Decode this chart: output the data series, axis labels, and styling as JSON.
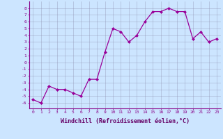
{
  "x": [
    0,
    1,
    2,
    3,
    4,
    5,
    6,
    7,
    8,
    9,
    10,
    11,
    12,
    13,
    14,
    15,
    16,
    17,
    18,
    19,
    20,
    21,
    22,
    23
  ],
  "y": [
    -5.5,
    -6.0,
    -3.5,
    -4.0,
    -4.0,
    -4.5,
    -5.0,
    -2.5,
    -2.5,
    1.5,
    5.0,
    4.5,
    3.0,
    4.0,
    6.0,
    7.5,
    7.5,
    8.0,
    7.5,
    7.5,
    3.5,
    4.5,
    3.0,
    3.5
  ],
  "line_color": "#990099",
  "marker": "D",
  "markersize": 2.0,
  "linewidth": 0.9,
  "bg_color": "#cce5ff",
  "grid_color": "#8888aa",
  "xlabel": "Windchill (Refroidissement éolien,°C)",
  "ylim": [
    -6.8,
    9.0
  ],
  "xlim": [
    -0.5,
    23.5
  ],
  "yticks": [
    -6,
    -5,
    -4,
    -3,
    -2,
    -1,
    0,
    1,
    2,
    3,
    4,
    5,
    6,
    7,
    8
  ],
  "xticks": [
    0,
    1,
    2,
    3,
    4,
    5,
    6,
    7,
    8,
    9,
    10,
    11,
    12,
    13,
    14,
    15,
    16,
    17,
    18,
    19,
    20,
    21,
    22,
    23
  ],
  "tick_fontsize": 4.5,
  "xlabel_fontsize": 6.0,
  "tick_color": "#880088",
  "label_color": "#660066",
  "spine_color": "#880088"
}
